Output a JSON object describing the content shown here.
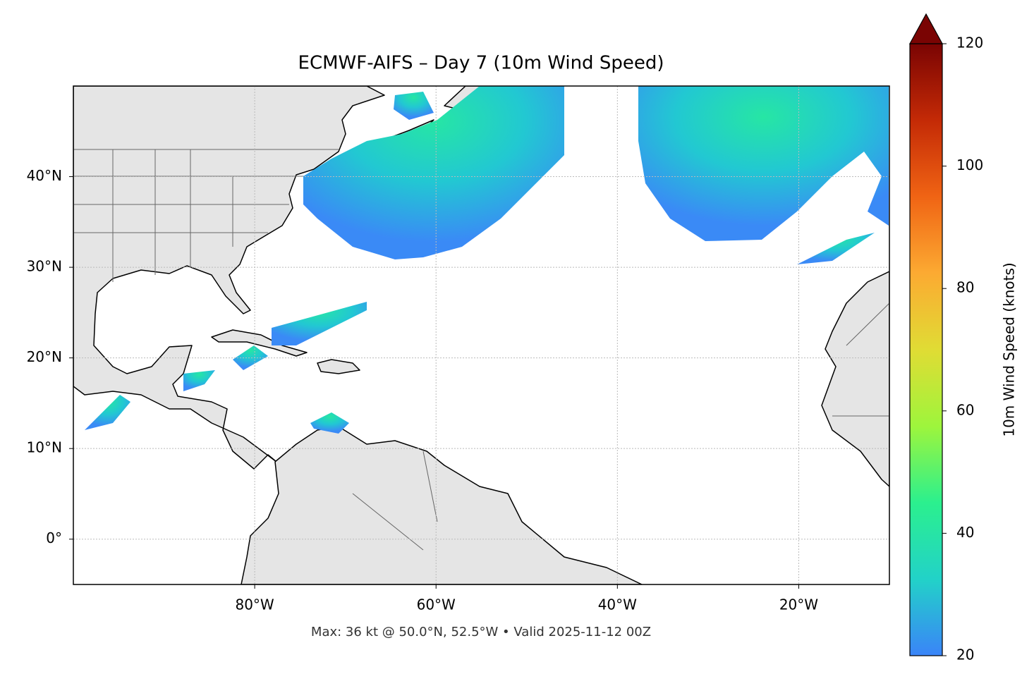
{
  "chart_data": {
    "type": "map",
    "title": "ECMWF-AIFS – Day 7 (10m Wind Speed)",
    "footnote": "Max: 36 kt @ 50.0°N, 52.5°W • Valid 2025-11-12 00Z",
    "xlim": [
      -100,
      -10
    ],
    "ylim": [
      -5,
      50
    ],
    "xticks": [
      {
        "value": -80,
        "label": "80°W"
      },
      {
        "value": -60,
        "label": "60°W"
      },
      {
        "value": -40,
        "label": "40°W"
      },
      {
        "value": -20,
        "label": "20°W"
      }
    ],
    "yticks": [
      {
        "value": 0,
        "label": "0°"
      },
      {
        "value": 10,
        "label": "10°N"
      },
      {
        "value": 20,
        "label": "20°N"
      },
      {
        "value": 30,
        "label": "30°N"
      },
      {
        "value": 40,
        "label": "40°N"
      }
    ],
    "grid": true,
    "colorbar": {
      "label": "10m Wind Speed (knots)",
      "clim": [
        20,
        120
      ],
      "ticks": [
        20,
        40,
        60,
        80,
        100,
        120
      ],
      "extend": "max",
      "colormap": [
        "#3a84f8",
        "#22d2c8",
        "#2bf08e",
        "#9ef53c",
        "#e0dc34",
        "#fcaa32",
        "#f06414",
        "#c42a06",
        "#7a0403"
      ]
    }
  }
}
